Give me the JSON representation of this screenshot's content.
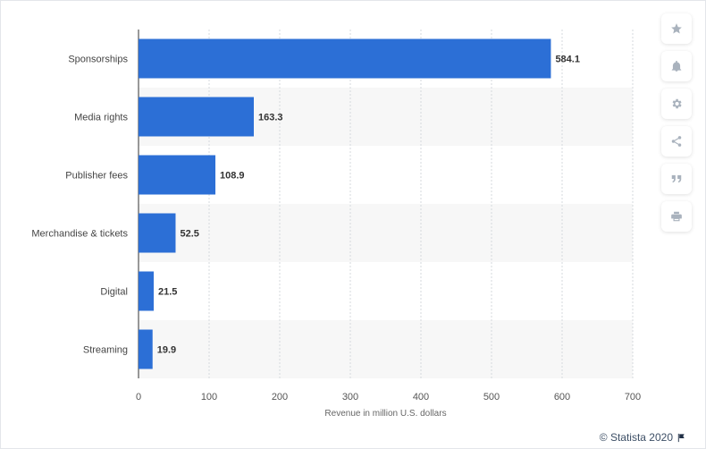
{
  "chart_data": {
    "type": "bar",
    "orientation": "horizontal",
    "categories": [
      "Sponsorships",
      "Media rights",
      "Publisher fees",
      "Merchandise & tickets",
      "Digital",
      "Streaming"
    ],
    "values": [
      584.1,
      163.3,
      108.9,
      52.5,
      21.5,
      19.9
    ],
    "value_labels": [
      "584.1",
      "163.3",
      "108.9",
      "52.5",
      "21.5",
      "19.9"
    ],
    "xlabel": "Revenue in million U.S. dollars",
    "xlim": [
      0,
      700
    ],
    "xticks": [
      "0",
      "100",
      "200",
      "300",
      "400",
      "500",
      "600",
      "700"
    ],
    "grid": "vertical-dashed",
    "bar_color": "#2c6fd6",
    "alt_row_color": "#f7f7f7"
  },
  "toolbar": {
    "icons": [
      "star-icon",
      "bell-icon",
      "gear-icon",
      "share-icon",
      "quote-icon",
      "print-icon"
    ]
  },
  "credit": {
    "text": "© Statista 2020"
  }
}
